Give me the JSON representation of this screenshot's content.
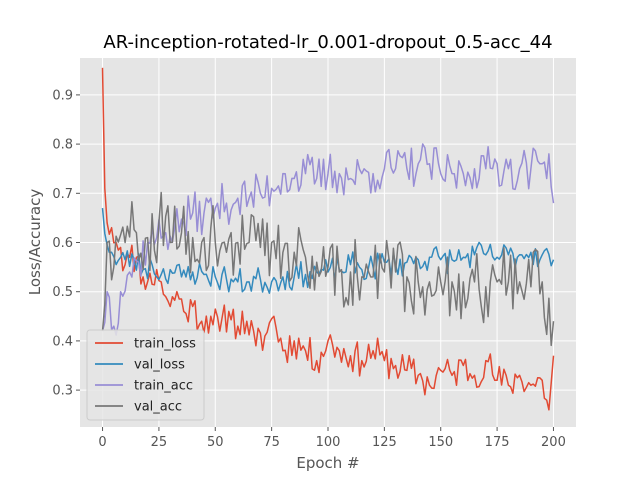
{
  "chart_data": {
    "type": "line",
    "title": "AR-inception-rotated-lr_0.001-dropout_0.5-acc_44",
    "xlabel": "Epoch #",
    "ylabel": "Loss/Accuracy",
    "xlim": [
      -10,
      210
    ],
    "ylim": [
      0.225,
      0.975
    ],
    "xticks": [
      0,
      25,
      50,
      75,
      100,
      125,
      150,
      175,
      200
    ],
    "yticks": [
      0.3,
      0.4,
      0.5,
      0.6,
      0.7,
      0.8,
      0.9
    ],
    "grid": true,
    "legend_position": "lower-left",
    "background": "#e5e5e5",
    "series": [
      {
        "name": "train_loss",
        "color": "#e24a33",
        "anchors": [
          [
            0,
            0.955
          ],
          [
            1,
            0.71
          ],
          [
            2,
            0.64
          ],
          [
            4,
            0.63
          ],
          [
            6,
            0.6
          ],
          [
            8,
            0.59
          ],
          [
            10,
            0.555
          ],
          [
            12,
            0.57
          ],
          [
            15,
            0.57
          ],
          [
            18,
            0.53
          ],
          [
            20,
            0.52
          ],
          [
            22,
            0.515
          ],
          [
            24,
            0.545
          ],
          [
            26,
            0.52
          ],
          [
            28,
            0.49
          ],
          [
            30,
            0.47
          ],
          [
            33,
            0.5
          ],
          [
            36,
            0.46
          ],
          [
            40,
            0.47
          ],
          [
            44,
            0.44
          ],
          [
            48,
            0.45
          ],
          [
            52,
            0.42
          ],
          [
            56,
            0.46
          ],
          [
            60,
            0.43
          ],
          [
            64,
            0.44
          ],
          [
            68,
            0.39
          ],
          [
            72,
            0.41
          ],
          [
            76,
            0.45
          ],
          [
            80,
            0.38
          ],
          [
            85,
            0.4
          ],
          [
            90,
            0.38
          ],
          [
            95,
            0.36
          ],
          [
            100,
            0.4
          ],
          [
            105,
            0.38
          ],
          [
            110,
            0.37
          ],
          [
            115,
            0.36
          ],
          [
            120,
            0.38
          ],
          [
            125,
            0.36
          ],
          [
            130,
            0.35
          ],
          [
            135,
            0.34
          ],
          [
            140,
            0.33
          ],
          [
            145,
            0.31
          ],
          [
            150,
            0.34
          ],
          [
            155,
            0.33
          ],
          [
            160,
            0.35
          ],
          [
            165,
            0.33
          ],
          [
            170,
            0.36
          ],
          [
            175,
            0.32
          ],
          [
            180,
            0.31
          ],
          [
            185,
            0.33
          ],
          [
            190,
            0.31
          ],
          [
            195,
            0.32
          ],
          [
            198,
            0.26
          ],
          [
            200,
            0.37
          ]
        ],
        "noise": 0.035,
        "seed": 11
      },
      {
        "name": "val_loss",
        "color": "#348abd",
        "anchors": [
          [
            0,
            0.67
          ],
          [
            2,
            0.595
          ],
          [
            4,
            0.58
          ],
          [
            6,
            0.555
          ],
          [
            8,
            0.57
          ],
          [
            10,
            0.565
          ],
          [
            14,
            0.565
          ],
          [
            18,
            0.545
          ],
          [
            22,
            0.555
          ],
          [
            26,
            0.535
          ],
          [
            30,
            0.545
          ],
          [
            35,
            0.53
          ],
          [
            40,
            0.54
          ],
          [
            45,
            0.535
          ],
          [
            50,
            0.53
          ],
          [
            55,
            0.525
          ],
          [
            60,
            0.52
          ],
          [
            65,
            0.52
          ],
          [
            70,
            0.525
          ],
          [
            75,
            0.52
          ],
          [
            80,
            0.53
          ],
          [
            85,
            0.53
          ],
          [
            90,
            0.535
          ],
          [
            95,
            0.54
          ],
          [
            100,
            0.54
          ],
          [
            105,
            0.545
          ],
          [
            110,
            0.555
          ],
          [
            115,
            0.545
          ],
          [
            120,
            0.55
          ],
          [
            125,
            0.56
          ],
          [
            130,
            0.555
          ],
          [
            135,
            0.56
          ],
          [
            140,
            0.565
          ],
          [
            145,
            0.57
          ],
          [
            150,
            0.565
          ],
          [
            155,
            0.565
          ],
          [
            160,
            0.57
          ],
          [
            165,
            0.575
          ],
          [
            170,
            0.575
          ],
          [
            175,
            0.57
          ],
          [
            180,
            0.575
          ],
          [
            185,
            0.575
          ],
          [
            190,
            0.58
          ],
          [
            195,
            0.575
          ],
          [
            200,
            0.565
          ]
        ],
        "noise": 0.028,
        "seed": 23
      },
      {
        "name": "train_acc",
        "color": "#988ed5",
        "anchors": [
          [
            0,
            0.42
          ],
          [
            2,
            0.5
          ],
          [
            5,
            0.43
          ],
          [
            8,
            0.5
          ],
          [
            12,
            0.54
          ],
          [
            16,
            0.56
          ],
          [
            20,
            0.6
          ],
          [
            24,
            0.61
          ],
          [
            28,
            0.62
          ],
          [
            32,
            0.63
          ],
          [
            36,
            0.64
          ],
          [
            40,
            0.66
          ],
          [
            45,
            0.66
          ],
          [
            50,
            0.67
          ],
          [
            55,
            0.68
          ],
          [
            60,
            0.69
          ],
          [
            65,
            0.69
          ],
          [
            70,
            0.7
          ],
          [
            75,
            0.71
          ],
          [
            80,
            0.74
          ],
          [
            85,
            0.73
          ],
          [
            90,
            0.74
          ],
          [
            95,
            0.73
          ],
          [
            100,
            0.74
          ],
          [
            105,
            0.74
          ],
          [
            110,
            0.73
          ],
          [
            115,
            0.74
          ],
          [
            120,
            0.74
          ],
          [
            125,
            0.75
          ],
          [
            130,
            0.75
          ],
          [
            135,
            0.75
          ],
          [
            140,
            0.76
          ],
          [
            145,
            0.76
          ],
          [
            150,
            0.74
          ],
          [
            155,
            0.74
          ],
          [
            160,
            0.74
          ],
          [
            165,
            0.75
          ],
          [
            170,
            0.75
          ],
          [
            175,
            0.76
          ],
          [
            180,
            0.75
          ],
          [
            185,
            0.75
          ],
          [
            190,
            0.75
          ],
          [
            195,
            0.76
          ],
          [
            198,
            0.78
          ],
          [
            200,
            0.68
          ]
        ],
        "noise": 0.045,
        "seed": 37
      },
      {
        "name": "val_acc",
        "color": "#777777",
        "anchors": [
          [
            0,
            0.42
          ],
          [
            2,
            0.6
          ],
          [
            5,
            0.55
          ],
          [
            10,
            0.6
          ],
          [
            15,
            0.62
          ],
          [
            20,
            0.61
          ],
          [
            25,
            0.64
          ],
          [
            30,
            0.6
          ],
          [
            35,
            0.62
          ],
          [
            40,
            0.61
          ],
          [
            45,
            0.61
          ],
          [
            50,
            0.6
          ],
          [
            55,
            0.58
          ],
          [
            60,
            0.6
          ],
          [
            65,
            0.6
          ],
          [
            70,
            0.59
          ],
          [
            75,
            0.6
          ],
          [
            80,
            0.58
          ],
          [
            85,
            0.58
          ],
          [
            90,
            0.57
          ],
          [
            95,
            0.56
          ],
          [
            100,
            0.55
          ],
          [
            105,
            0.54
          ],
          [
            110,
            0.54
          ],
          [
            115,
            0.53
          ],
          [
            120,
            0.53
          ],
          [
            125,
            0.54
          ],
          [
            130,
            0.54
          ],
          [
            135,
            0.53
          ],
          [
            140,
            0.52
          ],
          [
            145,
            0.52
          ],
          [
            150,
            0.52
          ],
          [
            155,
            0.52
          ],
          [
            160,
            0.52
          ],
          [
            165,
            0.52
          ],
          [
            170,
            0.51
          ],
          [
            175,
            0.52
          ],
          [
            180,
            0.52
          ],
          [
            185,
            0.52
          ],
          [
            190,
            0.51
          ],
          [
            195,
            0.52
          ],
          [
            200,
            0.44
          ]
        ],
        "noise": 0.075,
        "seed": 59
      }
    ]
  }
}
